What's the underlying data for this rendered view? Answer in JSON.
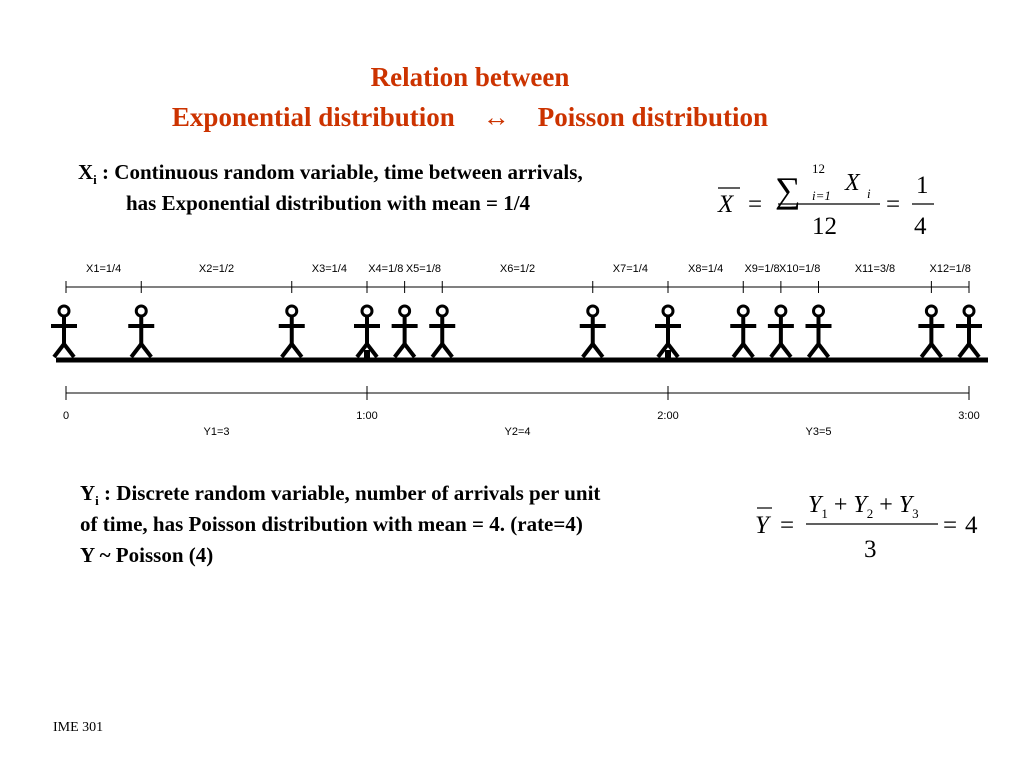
{
  "title": {
    "line1": "Relation between",
    "left": "Exponential distribution",
    "arrow": "↔",
    "right": "Poisson distribution"
  },
  "x_desc": {
    "var": "X",
    "sub": "i",
    "line1": " : Continuous random variable, time between arrivals,",
    "line2": "has Exponential  distribution with mean = 1/4"
  },
  "x_formula": {
    "lhs": "X",
    "sum_upper": "12",
    "sum_lower": "i=1",
    "term": "X",
    "term_sub": "i",
    "denominator": "12",
    "result_num": "1",
    "result_den": "4"
  },
  "timeline": {
    "interarrival_labels": [
      "X1=1/4",
      "X2=1/2",
      "X3=1/4",
      "X4=1/8",
      "X5=1/8",
      "X6=1/2",
      "X7=1/4",
      "X8=1/4",
      "X9=1/8",
      "X10=1/8",
      "X11=3/8",
      "X12=1/8"
    ],
    "time_labels": [
      "0",
      "1:00",
      "2:00",
      "3:00"
    ],
    "count_labels": [
      "Y1=3",
      "Y2=4",
      "Y3=5"
    ],
    "arrival_hours": [
      0.25,
      0.75,
      1.0,
      1.125,
      1.25,
      1.75,
      2.0,
      2.25,
      2.375,
      2.5,
      2.875,
      3.0
    ]
  },
  "y_desc": {
    "var": "Y",
    "sub": "i",
    "line1": " :  Discrete random variable, number of arrivals per unit",
    "line2": "of time, has Poisson distribution with mean = 4.     (rate=4)",
    "line3": "Y ~ Poisson (4)"
  },
  "y_formula": {
    "lhs": "Y",
    "numerator": "Y1 + Y2 + Y3",
    "denominator": "3",
    "result": "4"
  },
  "footer": "IME 301"
}
